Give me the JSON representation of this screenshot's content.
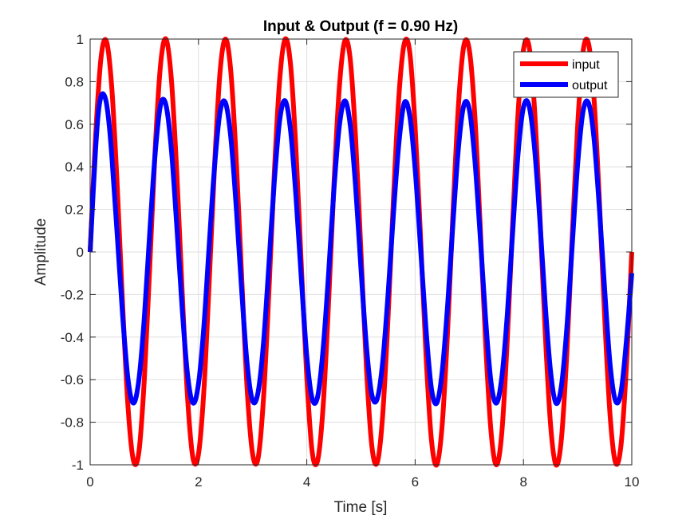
{
  "chart_data": {
    "type": "line",
    "title": "Input & Output (f = 0.90 Hz)",
    "xlabel": "Time [s]",
    "ylabel": "Amplitude",
    "xlim": [
      0,
      10
    ],
    "ylim": [
      -1,
      1
    ],
    "xticks": [
      0,
      2,
      4,
      6,
      8,
      10
    ],
    "xtick_labels": [
      "0",
      "2",
      "4",
      "6",
      "8",
      "10"
    ],
    "yticks": [
      -1,
      -0.8,
      -0.6,
      -0.4,
      -0.2,
      0,
      0.2,
      0.4,
      0.6,
      0.8,
      1
    ],
    "ytick_labels": [
      "-1",
      "-0.8",
      "-0.6",
      "-0.4",
      "-0.2",
      "0",
      "0.2",
      "0.4",
      "0.6",
      "0.8",
      "1"
    ],
    "grid": true,
    "legend_position": "top-right",
    "series": [
      {
        "name": "input",
        "color": "#ff0000",
        "x": [
          0,
          0.1,
          0.2,
          0.3,
          0.4,
          0.5,
          0.6,
          0.7,
          0.8,
          0.9,
          1.0,
          1.1,
          1.2,
          1.3,
          1.4,
          1.5,
          1.6,
          1.7,
          1.8,
          1.9,
          2.0,
          2.1,
          2.2,
          2.3,
          2.4,
          2.5,
          2.6,
          2.7,
          2.8,
          2.9,
          3.0,
          3.1,
          3.2,
          3.3,
          3.4,
          3.5,
          3.6,
          3.7,
          3.8,
          3.9,
          4.0,
          4.1,
          4.2,
          4.3,
          4.4,
          4.5,
          4.6,
          4.7,
          4.8,
          4.9,
          5.0,
          5.1,
          5.2,
          5.3,
          5.4,
          5.5,
          5.6,
          5.7,
          5.8,
          5.9,
          6.0,
          6.1,
          6.2,
          6.3,
          6.4,
          6.5,
          6.6,
          6.7,
          6.8,
          6.9,
          7.0,
          7.1,
          7.2,
          7.3,
          7.4,
          7.5,
          7.6,
          7.7,
          7.8,
          7.9,
          8.0,
          8.1,
          8.2,
          8.3,
          8.4,
          8.5,
          8.6,
          8.7,
          8.8,
          8.9,
          9.0,
          9.1,
          9.2,
          9.3,
          9.4,
          9.5,
          9.6,
          9.7,
          9.8,
          9.9,
          10.0
        ],
        "y": [
          0,
          0.54,
          0.91,
          0.99,
          0.77,
          0.31,
          -0.25,
          -0.73,
          -0.98,
          -0.94,
          -0.6,
          -0.07,
          0.48,
          0.88,
          1.0,
          0.81,
          0.37,
          -0.19,
          -0.69,
          -0.97,
          -0.95,
          -0.65,
          -0.13,
          0.42,
          0.85,
          1.0,
          0.84,
          0.42,
          -0.13,
          -0.65,
          -0.95,
          -0.97,
          -0.69,
          -0.19,
          0.37,
          0.81,
          1.0,
          0.88,
          0.48,
          -0.07,
          -0.59,
          -0.94,
          -0.98,
          -0.73,
          -0.25,
          0.31,
          0.77,
          0.99,
          0.91,
          0.54,
          0,
          -0.54,
          -0.91,
          -0.99,
          -0.77,
          -0.31,
          0.25,
          0.73,
          0.98,
          0.94,
          0.59,
          0.07,
          -0.48,
          -0.88,
          -1.0,
          -0.81,
          -0.37,
          0.19,
          0.69,
          0.97,
          0.95,
          0.65,
          0.13,
          -0.42,
          -0.84,
          -1.0,
          -0.85,
          -0.42,
          0.13,
          0.65,
          0.95,
          0.97,
          0.69,
          0.19,
          -0.37,
          -0.81,
          -1.0,
          -0.88,
          -0.48,
          0.07,
          0.59,
          0.94,
          0.98,
          0.73,
          0.25,
          -0.31,
          -0.77,
          -0.99,
          -0.91,
          -0.54,
          0
        ]
      },
      {
        "name": "output",
        "color": "#0000ff",
        "x": [
          0,
          0.05,
          0.1,
          0.15,
          0.2,
          0.25,
          0.3,
          0.35,
          0.4,
          0.5,
          0.6,
          0.7,
          0.8,
          0.9,
          1.0,
          1.1,
          1.2,
          1.3,
          1.4,
          1.5,
          1.6,
          1.7,
          1.8,
          1.9,
          2.0,
          2.1,
          2.2,
          2.3,
          2.4,
          2.5,
          2.6,
          2.7,
          2.8,
          2.9,
          3.0,
          3.1,
          3.2,
          3.3,
          3.4,
          3.5,
          3.6,
          3.7,
          3.8,
          3.9,
          4.0,
          4.1,
          4.2,
          4.3,
          4.4,
          4.5,
          4.6,
          4.7,
          4.8,
          4.9,
          5.0,
          5.1,
          5.2,
          5.3,
          5.4,
          5.5,
          5.6,
          5.7,
          5.8,
          5.9,
          6.0,
          6.1,
          6.2,
          6.3,
          6.4,
          6.5,
          6.6,
          6.7,
          6.8,
          6.9,
          7.0,
          7.1,
          7.2,
          7.3,
          7.4,
          7.5,
          7.6,
          7.7,
          7.8,
          7.9,
          8.0,
          8.1,
          8.2,
          8.3,
          8.4,
          8.5,
          8.6,
          8.7,
          8.8,
          8.9,
          9.0,
          9.1,
          9.2,
          9.3,
          9.4,
          9.5,
          9.6,
          9.7,
          9.8,
          9.9,
          10.0
        ],
        "y": [
          0,
          0.25,
          0.48,
          0.65,
          0.73,
          0.74,
          0.7,
          0.6,
          0.45,
          0.08,
          -0.3,
          -0.6,
          -0.71,
          -0.6,
          -0.31,
          0.09,
          0.46,
          0.69,
          0.69,
          0.48,
          0.12,
          -0.27,
          -0.58,
          -0.71,
          -0.62,
          -0.35,
          0.04,
          0.41,
          0.66,
          0.7,
          0.53,
          0.2,
          -0.19,
          -0.53,
          -0.7,
          -0.66,
          -0.43,
          -0.06,
          0.33,
          0.62,
          0.71,
          0.57,
          0.26,
          -0.13,
          -0.49,
          -0.69,
          -0.68,
          -0.46,
          -0.11,
          0.29,
          0.59,
          0.71,
          0.6,
          0.31,
          -0.08,
          -0.44,
          -0.67,
          -0.69,
          -0.52,
          -0.2,
          0.18,
          0.51,
          0.7,
          0.64,
          0.39,
          0.02,
          -0.36,
          -0.64,
          -0.71,
          -0.56,
          -0.25,
          0.14,
          0.49,
          0.69,
          0.67,
          0.44,
          0.08,
          -0.31,
          -0.61,
          -0.71,
          -0.59,
          -0.3,
          0.09,
          0.46,
          0.68,
          0.69,
          0.5,
          0.16,
          -0.24,
          -0.56,
          -0.71,
          -0.63,
          -0.36,
          0.03,
          0.41,
          0.66,
          0.7,
          0.54,
          0.21,
          -0.18,
          -0.53,
          -0.7,
          -0.66,
          -0.42,
          -0.1
        ]
      }
    ]
  }
}
